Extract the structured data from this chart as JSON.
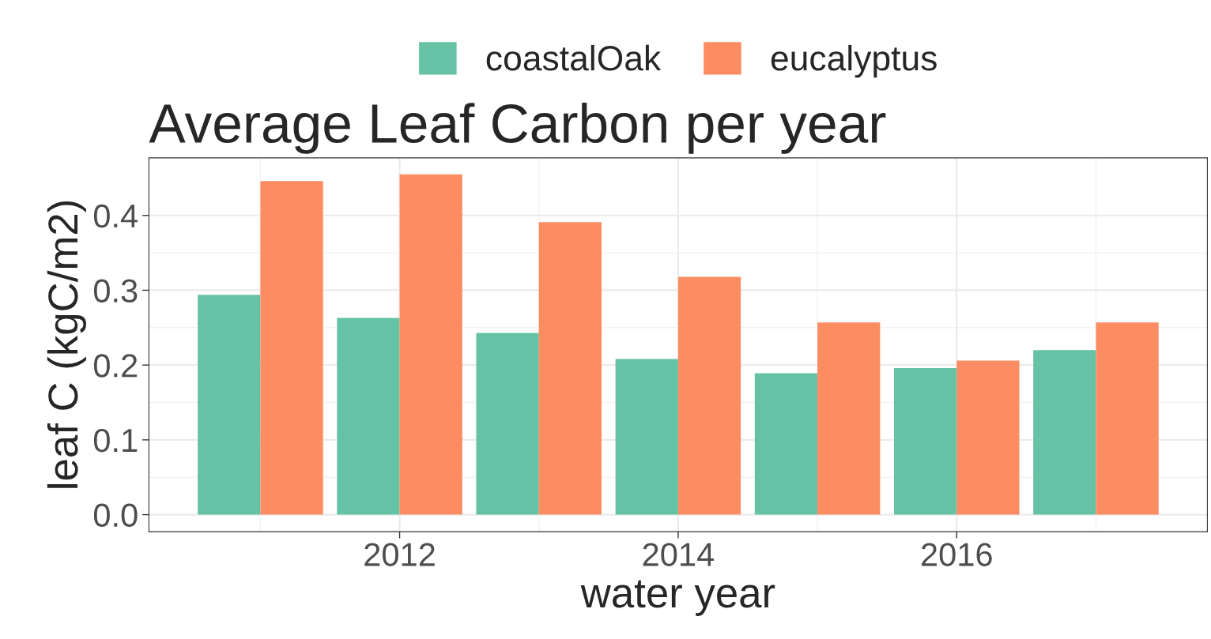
{
  "chart_data": {
    "type": "bar",
    "title": "Average Leaf Carbon per year",
    "xlabel": "water year",
    "ylabel": "leaf C (kgC/m2)",
    "x": [
      2011,
      2012,
      2013,
      2014,
      2015,
      2016,
      2017
    ],
    "series": [
      {
        "name": "coastalOak",
        "color": "#66c2a5",
        "values": [
          0.294,
          0.263,
          0.243,
          0.208,
          0.189,
          0.196,
          0.22
        ]
      },
      {
        "name": "eucalyptus",
        "color": "#fc8d62",
        "values": [
          0.446,
          0.455,
          0.391,
          0.318,
          0.257,
          0.206,
          0.257
        ]
      }
    ],
    "xlim": [
      2010.2,
      2017.8
    ],
    "xticks": [
      2012,
      2014,
      2016
    ],
    "ylim": [
      -0.0227,
      0.477
    ],
    "yticks": [
      {
        "value": 0,
        "label": "0.0"
      },
      0.1,
      0.2,
      0.3,
      0.4
    ],
    "grid": true,
    "legend": "top"
  }
}
